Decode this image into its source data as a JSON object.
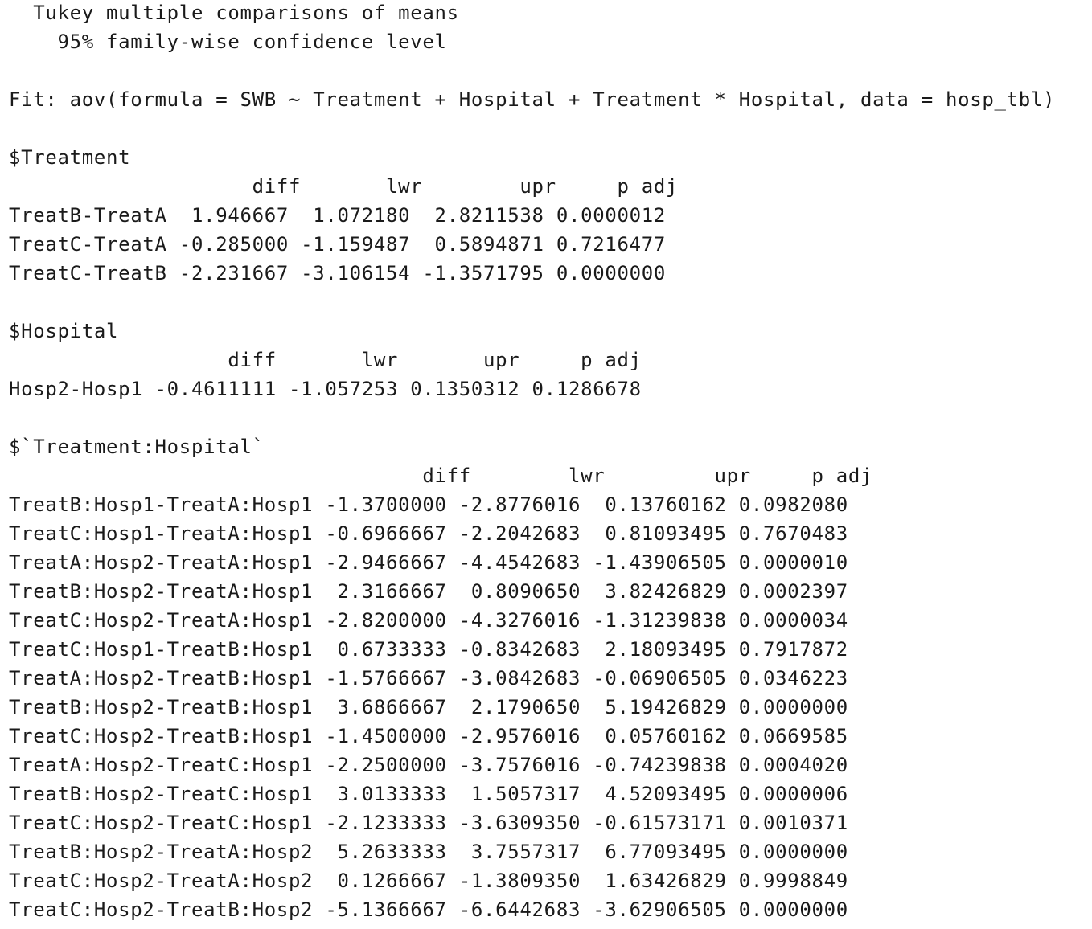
{
  "header": {
    "title": "  Tukey multiple comparisons of means",
    "conf_level": "    95% family-wise confidence level"
  },
  "fit": {
    "text": "Fit: aov(formula = SWB ~ Treatment + Hospital + Treatment * Hospital, data = hosp_tbl)"
  },
  "treatment": {
    "label": "$Treatment",
    "header": "                    diff       lwr        upr     p adj",
    "rows": [
      "TreatB-TreatA  1.946667  1.072180  2.8211538 0.0000012",
      "TreatC-TreatA -0.285000 -1.159487  0.5894871 0.7216477",
      "TreatC-TreatB -2.231667 -3.106154 -1.3571795 0.0000000"
    ]
  },
  "hospital": {
    "label": "$Hospital",
    "header": "                  diff       lwr       upr     p adj",
    "rows": [
      "Hosp2-Hosp1 -0.4611111 -1.057253 0.1350312 0.1286678"
    ]
  },
  "interaction": {
    "label": "$`Treatment:Hospital`",
    "header": "                                  diff        lwr         upr     p adj",
    "rows": [
      "TreatB:Hosp1-TreatA:Hosp1 -1.3700000 -2.8776016  0.13760162 0.0982080",
      "TreatC:Hosp1-TreatA:Hosp1 -0.6966667 -2.2042683  0.81093495 0.7670483",
      "TreatA:Hosp2-TreatA:Hosp1 -2.9466667 -4.4542683 -1.43906505 0.0000010",
      "TreatB:Hosp2-TreatA:Hosp1  2.3166667  0.8090650  3.82426829 0.0002397",
      "TreatC:Hosp2-TreatA:Hosp1 -2.8200000 -4.3276016 -1.31239838 0.0000034",
      "TreatC:Hosp1-TreatB:Hosp1  0.6733333 -0.8342683  2.18093495 0.7917872",
      "TreatA:Hosp2-TreatB:Hosp1 -1.5766667 -3.0842683 -0.06906505 0.0346223",
      "TreatB:Hosp2-TreatB:Hosp1  3.6866667  2.1790650  5.19426829 0.0000000",
      "TreatC:Hosp2-TreatB:Hosp1 -1.4500000 -2.9576016  0.05760162 0.0669585",
      "TreatA:Hosp2-TreatC:Hosp1 -2.2500000 -3.7576016 -0.74239838 0.0004020",
      "TreatB:Hosp2-TreatC:Hosp1  3.0133333  1.5057317  4.52093495 0.0000006",
      "TreatC:Hosp2-TreatC:Hosp1 -2.1233333 -3.6309350 -0.61573171 0.0010371",
      "TreatB:Hosp2-TreatA:Hosp2  5.2633333  3.7557317  6.77093495 0.0000000",
      "TreatC:Hosp2-TreatA:Hosp2  0.1266667 -1.3809350  1.63426829 0.9998849",
      "TreatC:Hosp2-TreatB:Hosp2 -5.1366667 -6.6442683 -3.62906505 0.0000000"
    ]
  }
}
